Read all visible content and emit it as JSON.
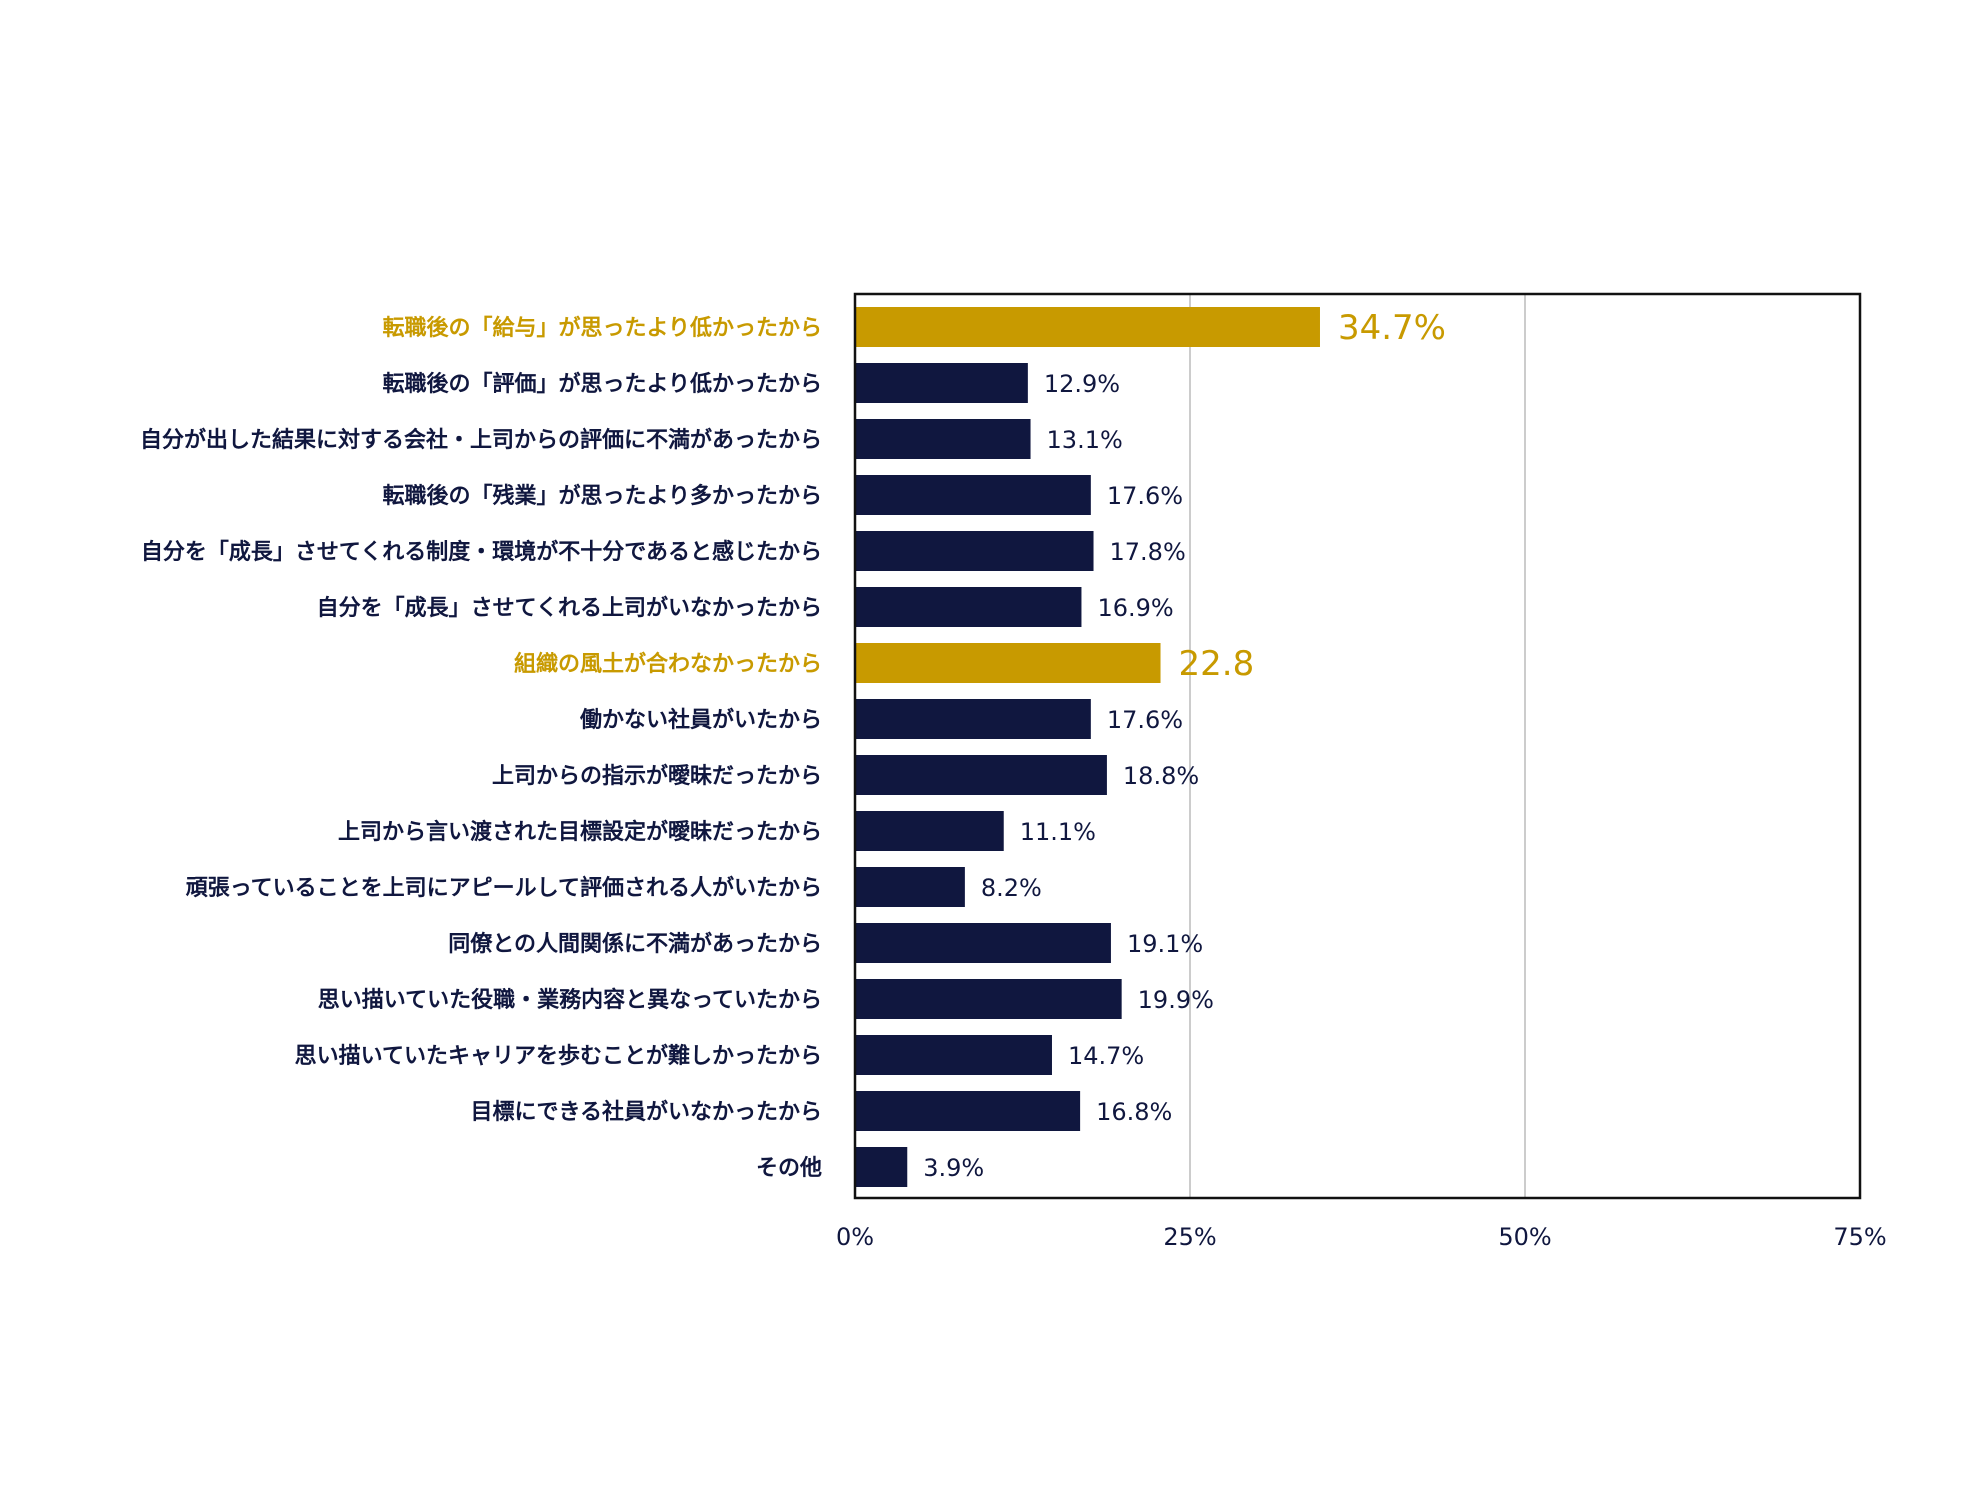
{
  "chart_data": {
    "type": "bar",
    "orientation": "horizontal",
    "categories": [
      "転職後の「給与」が思ったより低かったから",
      "転職後の「評価」が思ったより低かったから",
      "自分が出した結果に対する会社・上司からの評価に不満があったから",
      "転職後の「残業」が思ったより多かったから",
      "自分を「成長」させてくれる制度・環境が不十分であると感じたから",
      "自分を「成長」させてくれる上司がいなかったから",
      "組織の風土が合わなかったから",
      "働かない社員がいたから",
      "上司からの指示が曖昧だったから",
      "上司から言い渡された目標設定が曖昧だったから",
      "頑張っていることを上司にアピールして評価される人がいたから",
      "同僚との人間関係に不満があったから",
      "思い描いていた役職・業務内容と異なっていたから",
      "思い描いていたキャリアを歩むことが難しかったから",
      "目標にできる社員がいなかったから",
      "その他"
    ],
    "values": [
      34.7,
      12.9,
      13.1,
      17.6,
      17.8,
      16.9,
      22.8,
      17.6,
      18.8,
      11.1,
      8.2,
      19.1,
      19.9,
      14.7,
      16.8,
      3.9
    ],
    "value_labels": [
      "34.7%",
      "12.9%",
      "13.1%",
      "17.6%",
      "17.8%",
      "16.9%",
      "22.8",
      "17.6%",
      "18.8%",
      "11.1%",
      "8.2%",
      "19.1%",
      "19.9%",
      "14.7%",
      "16.8%",
      "3.9%"
    ],
    "highlighted": [
      0,
      6
    ],
    "xlim": [
      0,
      75
    ],
    "xticks": [
      "0%",
      "25%",
      "50%",
      "75%"
    ],
    "xtick_values": [
      0,
      25,
      50,
      75
    ],
    "grid": "vertical",
    "legend": "none",
    "colors": {
      "bar": "#10173f",
      "highlight": "#c89a00",
      "label": "#10173f",
      "grid": "#bbbbbb",
      "frame": "#111111"
    }
  }
}
